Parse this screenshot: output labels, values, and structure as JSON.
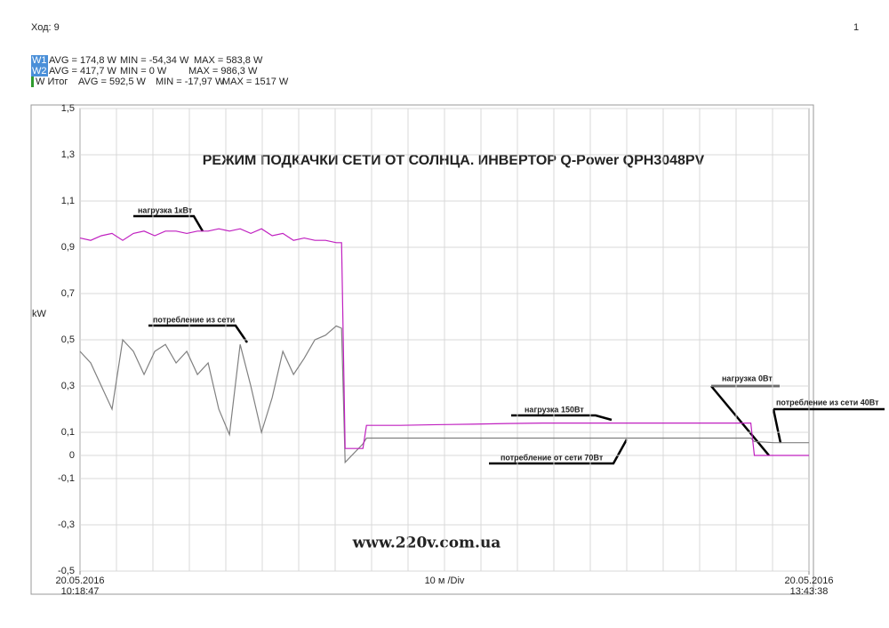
{
  "header": {
    "left": "Ход: 9",
    "right": "1"
  },
  "chart_data": {
    "type": "line",
    "title": "РЕЖИМ ПОДКАЧКИ СЕТИ ОТ СОЛНЦА. ИНВЕРТОР Q-Power QPH3048PV",
    "y_label": "kW",
    "x_label": "10 м /Div",
    "watermark": "www.220v.com.ua",
    "annotations": [
      "нагрузка 1кВт",
      "потребление из сети",
      "нагрузка 150Вт",
      "потребление от сети 70Вт",
      "нагрузка 0Вт",
      "потребление из сети 40Вт"
    ],
    "x": [
      0,
      3,
      6,
      9,
      12,
      15,
      18,
      21,
      24,
      27,
      30,
      33,
      36,
      39,
      42,
      45,
      48,
      51,
      54,
      57,
      60,
      63,
      66,
      69,
      72,
      73.5,
      74.5,
      79.5,
      80.5,
      84,
      90,
      100,
      110,
      120,
      130,
      140,
      150,
      160,
      170,
      180,
      188.5,
      189.5,
      195,
      204.85
    ],
    "xlim": [
      0,
      204.85
    ],
    "xticks": [
      {
        "value": 0,
        "label": "20.05.2016\n10:18:47"
      },
      {
        "value": 204.85,
        "label": "20.05.2016\n13:43:38"
      }
    ],
    "ylim": [
      -0.5,
      1.5
    ],
    "yticks": [
      {
        "value": 1.5,
        "label": "1,5"
      },
      {
        "value": 1.3,
        "label": "1,3"
      },
      {
        "value": 1.1,
        "label": "1,1"
      },
      {
        "value": 0.9,
        "label": "0,9"
      },
      {
        "value": 0.7,
        "label": "0,7"
      },
      {
        "value": 0.5,
        "label": "0,5"
      },
      {
        "value": 0.3,
        "label": "0,3"
      },
      {
        "value": 0.1,
        "label": "0,1"
      },
      0,
      {
        "value": -0.1,
        "label": "-0,1"
      },
      {
        "value": -0.3,
        "label": "-0,3"
      },
      {
        "value": -0.5,
        "label": "-0,5"
      }
    ],
    "grid": true,
    "series": [
      {
        "name": "W1",
        "color": "#808080",
        "badge": "#4a8fd8",
        "stats": [
          "AVG = 174,8 W",
          "MIN = -54,34 W",
          "MAX = 583,8 W"
        ],
        "values": [
          0.45,
          0.4,
          0.3,
          0.2,
          0.5,
          0.45,
          0.35,
          0.45,
          0.48,
          0.4,
          0.45,
          0.35,
          0.4,
          0.2,
          0.09,
          0.48,
          0.3,
          0.1,
          0.25,
          0.45,
          0.35,
          0.42,
          0.5,
          0.52,
          0.56,
          0.55,
          -0.03,
          0.05,
          0.075,
          0.075,
          0.075,
          0.075,
          0.075,
          0.075,
          0.075,
          0.075,
          0.075,
          0.075,
          0.075,
          0.075,
          0.075,
          0.06,
          0.055,
          0.055
        ]
      },
      {
        "name": "W2",
        "color": "#c020c0",
        "badge": "#4a8fd8",
        "stats": [
          "AVG = 417,7 W",
          "MIN = 0 W",
          "MAX = 986,3 W"
        ],
        "values": [
          0.94,
          0.93,
          0.95,
          0.96,
          0.93,
          0.96,
          0.97,
          0.95,
          0.97,
          0.97,
          0.96,
          0.97,
          0.97,
          0.98,
          0.97,
          0.98,
          0.96,
          0.98,
          0.95,
          0.96,
          0.93,
          0.94,
          0.93,
          0.93,
          0.92,
          0.92,
          0.03,
          0.03,
          0.13,
          0.13,
          0.13,
          0.133,
          0.135,
          0.138,
          0.14,
          0.14,
          0.14,
          0.14,
          0.14,
          0.14,
          0.14,
          0,
          0,
          0
        ]
      },
      {
        "name": "W Итог",
        "color": "#2e9b2e",
        "stats": [
          "AVG = 592,5 W",
          "MIN = -17,97 W",
          "MAX = 1517 W"
        ]
      }
    ]
  }
}
